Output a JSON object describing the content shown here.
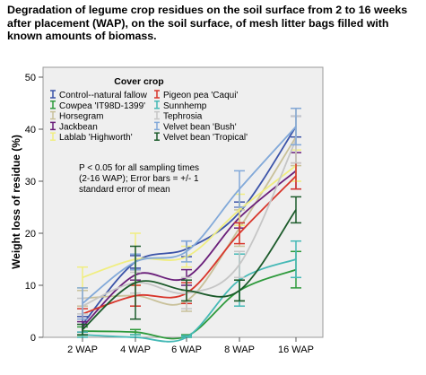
{
  "chart_data": {
    "type": "line",
    "title": "Degradation of legume crop residues on the soil surface from 2 to 16 weeks after placement (WAP), on the soil surface, of mesh litter bags filled with known amounts of biomass.",
    "ylabel": "Weight loss of residue (%)",
    "xlabel": "",
    "categories": [
      "2 WAP",
      "4 WAP",
      "6 WAP",
      "8 WAP",
      "16 WAP"
    ],
    "ylim": [
      0,
      50
    ],
    "yticks": [
      "0",
      "10",
      "20",
      "30",
      "40",
      "50"
    ],
    "legend_title": "Cover crop",
    "legend_position": "top-left",
    "grid": false,
    "annotation": "P < 0.05 for all sampling times (2-16 WAP); Error bars = +/- 1 standard error of mean",
    "series": [
      {
        "name": "Control--natural fallow",
        "color": "#3b53a8",
        "values": [
          2.5,
          14.5,
          17.0,
          24.0,
          40.5
        ],
        "errors": [
          1.5,
          1.2,
          1.5,
          2.0,
          2.0
        ]
      },
      {
        "name": "Cowpea 'IT98D-1399'",
        "color": "#2e9a3c",
        "values": [
          1.2,
          1.0,
          0.2,
          9.0,
          13.0
        ],
        "errors": [
          0.8,
          0.5,
          0.3,
          2.0,
          3.5
        ]
      },
      {
        "name": "Horsegram",
        "color": "#c9c19a",
        "values": [
          7.5,
          8.0,
          7.0,
          21.0,
          38.5
        ],
        "errors": [
          1.5,
          2.0,
          2.0,
          3.5,
          5.5
        ]
      },
      {
        "name": "Jackbean",
        "color": "#6a1f7a",
        "values": [
          2.0,
          12.0,
          11.5,
          23.0,
          32.0
        ],
        "errors": [
          1.0,
          1.0,
          1.5,
          2.0,
          3.5
        ]
      },
      {
        "name": "Lablab 'Highworth'",
        "color": "#f0ee80",
        "values": [
          11.5,
          15.0,
          15.5,
          24.5,
          33.0
        ],
        "errors": [
          2.0,
          5.0,
          2.0,
          3.0,
          3.0
        ]
      },
      {
        "name": "Pigeon pea 'Caqui'",
        "color": "#d8362b",
        "values": [
          4.5,
          8.0,
          8.5,
          20.0,
          31.0
        ],
        "errors": [
          1.0,
          2.0,
          2.0,
          2.0,
          2.5
        ]
      },
      {
        "name": "Sunnhemp",
        "color": "#45b9b6",
        "values": [
          0.5,
          0.0,
          0.0,
          11.0,
          15.0
        ],
        "errors": [
          0.5,
          0.5,
          0.3,
          5.0,
          3.5
        ]
      },
      {
        "name": "Tephrosia",
        "color": "#c6c6c6",
        "values": [
          6.0,
          10.5,
          8.5,
          14.0,
          38.0
        ],
        "errors": [
          1.5,
          2.0,
          3.0,
          2.5,
          4.5
        ]
      },
      {
        "name": "Velvet bean 'Bush'",
        "color": "#82a9d9",
        "values": [
          6.5,
          14.5,
          16.5,
          28.5,
          40.5
        ],
        "errors": [
          3.0,
          1.5,
          2.0,
          3.5,
          3.5
        ]
      },
      {
        "name": "Velvet bean 'Tropical'",
        "color": "#1b5a2a",
        "values": [
          1.5,
          10.5,
          9.0,
          9.0,
          24.5
        ],
        "errors": [
          1.0,
          7.0,
          2.0,
          2.0,
          2.5
        ]
      }
    ]
  }
}
